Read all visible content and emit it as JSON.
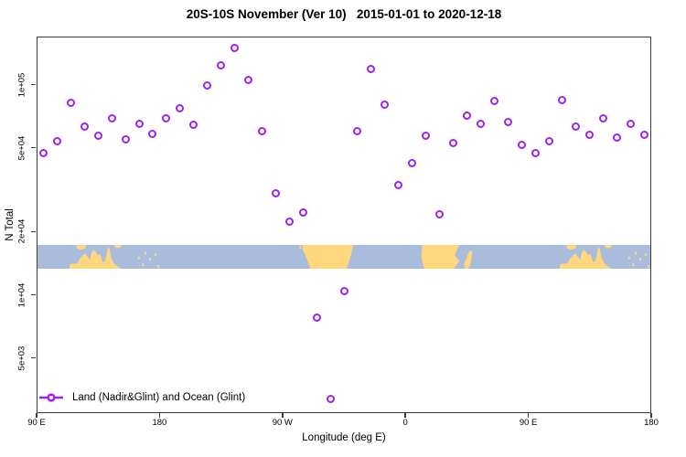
{
  "title": "20S-10S November (Ver 10)   2015-01-01 to 2020-12-18",
  "x_axis": {
    "label": "Longitude (deg E)",
    "ticks": [
      {
        "deg": 90,
        "label": "90 E"
      },
      {
        "deg": 180,
        "label": "180"
      },
      {
        "deg": 270,
        "label": "90 W"
      },
      {
        "deg": 360,
        "label": "0"
      },
      {
        "deg": 450,
        "label": "90 E"
      },
      {
        "deg": 540,
        "label": "180"
      }
    ]
  },
  "y_axis": {
    "label": "N Total",
    "scale": "log",
    "ticks": [
      {
        "value": 100000,
        "label": "1e+05"
      },
      {
        "value": 50000,
        "label": "5e+04"
      },
      {
        "value": 20000,
        "label": "2e+04"
      },
      {
        "value": 10000,
        "label": "1e+04"
      },
      {
        "value": 5000,
        "label": "5e+03"
      }
    ]
  },
  "legend": {
    "label": "Land (Nadir&Glint) and Ocean (Glint)"
  },
  "colors": {
    "marker": "#A020F0",
    "ocean": "#A9BCDB",
    "land": "#FFD77E",
    "axis": "#3a3a3a"
  },
  "chart_data": {
    "type": "scatter",
    "title": "20S-10S November (Ver 10)   2015-01-01 to 2020-12-18",
    "xlabel": "Longitude (deg E)",
    "ylabel": "N Total",
    "y_scale": "log",
    "ylim": [
      2500,
      200000
    ],
    "x_axis_note": "x runs 90E eastward through 180, 90W, 0, 90E to 180 (axis degrees 90-540)",
    "series_name": "Land (Nadir&Glint) and Ocean (Glint)",
    "x_deg_axis": [
      95,
      105,
      115,
      125,
      135,
      145,
      155,
      165,
      175,
      185,
      195,
      205,
      215,
      225,
      235,
      245,
      255,
      265,
      275,
      285,
      295,
      305,
      315,
      325,
      335,
      345,
      355,
      365,
      375,
      385,
      395,
      405,
      415,
      425,
      435,
      445,
      455,
      465,
      475,
      485,
      495,
      505,
      515,
      525,
      535
    ],
    "values": [
      47000,
      53500,
      82000,
      63400,
      56800,
      69300,
      55100,
      65300,
      58500,
      68700,
      77400,
      64100,
      99500,
      123000,
      149000,
      105000,
      60300,
      30500,
      22200,
      24700,
      7800,
      3200,
      10400,
      60300,
      119000,
      79900,
      33100,
      42100,
      56800,
      24200,
      52500,
      70800,
      64700,
      83200,
      66100,
      51900,
      47400,
      53500,
      84000,
      63400,
      57400,
      68700,
      55700,
      65300,
      57900
    ]
  },
  "map": {
    "lat_band": "20S-10S",
    "land_polygons": [
      {
        "name": "australia",
        "offsets": [
          0,
          360
        ],
        "pts": [
          [
            113.5,
            1
          ],
          [
            113.5,
            0.82
          ],
          [
            116,
            0.78
          ],
          [
            119,
            0.8
          ],
          [
            121,
            0.6
          ],
          [
            123,
            0.45
          ],
          [
            125,
            0.36
          ],
          [
            127,
            0.52
          ],
          [
            128.6,
            0.62
          ],
          [
            129.6,
            0.34
          ],
          [
            131,
            0.2
          ],
          [
            133,
            0.3
          ],
          [
            134.5,
            0.44
          ],
          [
            136,
            0.36
          ],
          [
            137,
            0.56
          ],
          [
            138.2,
            0.74
          ],
          [
            139.6,
            0.66
          ],
          [
            140.8,
            0.4
          ],
          [
            141.7,
            0.07
          ],
          [
            142.7,
            0.14
          ],
          [
            143.5,
            0.36
          ],
          [
            144.6,
            0.6
          ],
          [
            146,
            0.76
          ],
          [
            148,
            0.88
          ],
          [
            150.2,
            0.95
          ],
          [
            151.2,
            1
          ]
        ]
      },
      {
        "name": "indonesia-arc",
        "offsets": [
          0,
          360
        ],
        "pts": [
          [
            118.5,
            0
          ],
          [
            125.5,
            0
          ],
          [
            125.5,
            0.14
          ],
          [
            121.5,
            0.2
          ],
          [
            118.5,
            0.12
          ]
        ]
      },
      {
        "name": "new-guinea-coast",
        "offsets": [
          0,
          360
        ],
        "pts": [
          [
            146.5,
            0
          ],
          [
            151.5,
            0
          ],
          [
            151.5,
            0.1
          ],
          [
            148,
            0.14
          ],
          [
            146.5,
            0.06
          ]
        ]
      },
      {
        "name": "south-america",
        "offsets": [
          0
        ],
        "pts": [
          [
            284.5,
            0
          ],
          [
            322,
            0
          ],
          [
            320.5,
            0.35
          ],
          [
            317.2,
            1
          ],
          [
            290.5,
            1
          ],
          [
            287.5,
            0.55
          ],
          [
            284.8,
            0.2
          ]
        ]
      },
      {
        "name": "africa",
        "offsets": [
          0
        ],
        "pts": [
          [
            372.5,
            0
          ],
          [
            399.5,
            0
          ],
          [
            396.5,
            0.45
          ],
          [
            399.8,
            0.68
          ],
          [
            395.5,
            1
          ],
          [
            373.8,
            1
          ],
          [
            371.8,
            0.5
          ]
        ]
      },
      {
        "name": "madagascar",
        "offsets": [
          0
        ],
        "pts": [
          [
            407.5,
            0.2
          ],
          [
            409.3,
            0.3
          ],
          [
            408.2,
            0.75
          ],
          [
            406.5,
            1
          ],
          [
            403.6,
            1
          ],
          [
            403.2,
            0.8
          ],
          [
            405.3,
            0.5
          ]
        ]
      }
    ],
    "island_specks": [
      {
        "deg": 163.8,
        "frac": 0.5,
        "offsets": [
          0,
          360
        ]
      },
      {
        "deg": 166.8,
        "frac": 0.78,
        "offsets": [
          0,
          360
        ]
      },
      {
        "deg": 168.5,
        "frac": 0.3,
        "offsets": [
          0,
          360
        ]
      },
      {
        "deg": 172,
        "frac": 0.55,
        "offsets": [
          0,
          360
        ]
      },
      {
        "deg": 176,
        "frac": 0.35,
        "offsets": [
          0,
          360
        ]
      },
      {
        "deg": 178,
        "frac": 0.85,
        "offsets": [
          0,
          360
        ]
      },
      {
        "deg": 282.3,
        "frac": 0.05,
        "offsets": [
          0
        ]
      }
    ]
  }
}
